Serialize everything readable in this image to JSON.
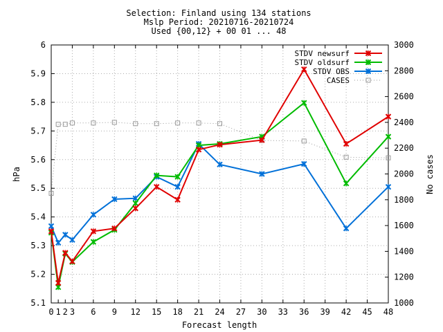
{
  "title_lines": [
    "Selection: Finland using   134 stations",
    "Mslp   Period: 20210716-20210724",
    "Used {00,12} + 00 01 ... 48"
  ],
  "chart_data": {
    "type": "line",
    "xlabel": "Forecast length",
    "ylabel": "hPa",
    "y2label": "No cases",
    "xlim": [
      0,
      48
    ],
    "ylim": [
      5.1,
      6.0
    ],
    "y2lim": [
      1000,
      3000
    ],
    "x_ticks": [
      0,
      3,
      6,
      9,
      12,
      15,
      18,
      21,
      24,
      27,
      30,
      33,
      36,
      39,
      42,
      45,
      48
    ],
    "x_tick_labels_extra": [
      1,
      2
    ],
    "y_ticks": [
      5.1,
      5.2,
      5.3,
      5.4,
      5.5,
      5.6,
      5.7,
      5.8,
      5.9,
      6
    ],
    "y_tick_labels": [
      "5.1",
      "5.2",
      "5.3",
      "5.4",
      "5.5",
      "5.6",
      "5.7",
      "5.8",
      "5.9",
      "6"
    ],
    "y2_ticks": [
      1000,
      1200,
      1400,
      1600,
      1800,
      2000,
      2200,
      2400,
      2600,
      2800,
      3000
    ],
    "grid": true,
    "legend_position": "top-right",
    "series": [
      {
        "name": "STDV newsurf",
        "color": "#e00000",
        "marker": "x",
        "line": "solid",
        "axis": "y",
        "x": [
          0,
          1,
          2,
          3,
          6,
          9,
          12,
          15,
          18,
          21,
          24,
          30,
          36,
          42,
          48
        ],
        "y": [
          5.35,
          5.17,
          5.275,
          5.245,
          5.35,
          5.36,
          5.43,
          5.505,
          5.46,
          5.635,
          5.652,
          5.668,
          5.915,
          5.655,
          5.75
        ]
      },
      {
        "name": "STDV oldsurf",
        "color": "#00bb00",
        "marker": "x",
        "line": "solid",
        "axis": "y",
        "x": [
          0,
          1,
          2,
          3,
          6,
          9,
          12,
          15,
          18,
          21,
          24,
          30,
          36,
          42,
          48
        ],
        "y": [
          5.345,
          5.155,
          5.272,
          5.243,
          5.313,
          5.355,
          5.448,
          5.545,
          5.54,
          5.65,
          5.655,
          5.68,
          5.798,
          5.517,
          5.68
        ]
      },
      {
        "name": "STDV OBS",
        "color": "#0070d8",
        "marker": "x",
        "line": "solid",
        "axis": "y",
        "x": [
          0,
          1,
          2,
          3,
          6,
          9,
          12,
          15,
          18,
          21,
          24,
          30,
          36,
          42,
          48
        ],
        "y": [
          5.368,
          5.31,
          5.338,
          5.32,
          5.408,
          5.462,
          5.465,
          5.54,
          5.505,
          5.655,
          5.583,
          5.55,
          5.585,
          5.36,
          5.505
        ]
      },
      {
        "name": "CASES",
        "color": "#999999",
        "marker": "square",
        "line": "dotted",
        "axis": "y2",
        "x": [
          0,
          1,
          2,
          3,
          6,
          9,
          12,
          15,
          18,
          21,
          24,
          30,
          36,
          42,
          48
        ],
        "y": [
          1850,
          2385,
          2385,
          2395,
          2395,
          2400,
          2390,
          2390,
          2395,
          2395,
          2390,
          2260,
          2255,
          2130,
          2125
        ]
      }
    ]
  }
}
